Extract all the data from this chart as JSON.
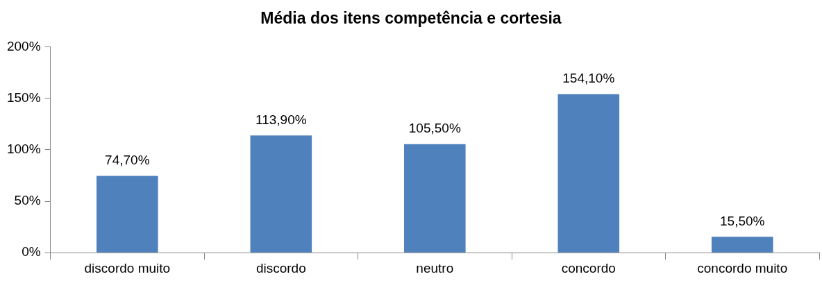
{
  "chart_data": {
    "type": "bar",
    "title": "Média dos itens competência e cortesia",
    "categories": [
      "discordo muito",
      "discordo",
      "neutro",
      "concordo",
      "concordo muito"
    ],
    "values": [
      74.7,
      113.9,
      105.5,
      154.1,
      15.5
    ],
    "value_labels": [
      "74,70%",
      "113,90%",
      "105,50%",
      "154,10%",
      "15,50%"
    ],
    "color": "#4f81bd",
    "ylim": [
      0,
      200
    ],
    "yticks": [
      {
        "value": 0,
        "label": "0%"
      },
      {
        "value": 50,
        "label": "50%"
      },
      {
        "value": 100,
        "label": "100%"
      },
      {
        "value": 150,
        "label": "150%"
      },
      {
        "value": 200,
        "label": "200%"
      }
    ],
    "grid": false,
    "legend": false
  }
}
